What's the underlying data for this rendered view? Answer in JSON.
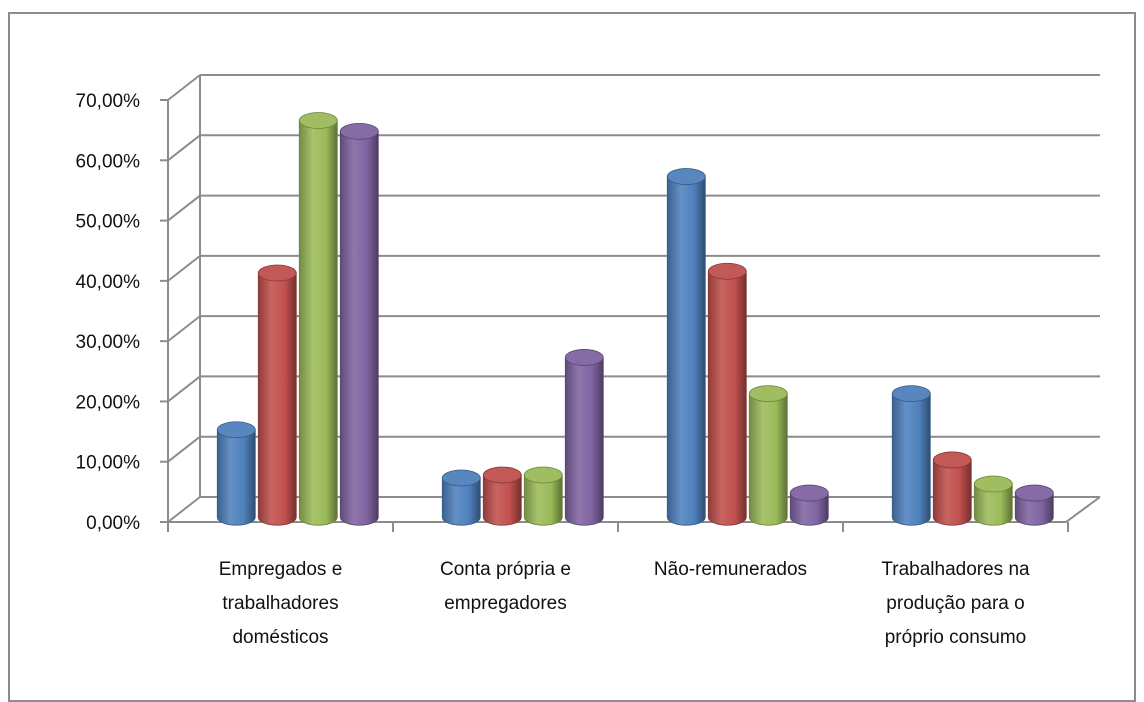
{
  "chart_data": {
    "type": "bar",
    "style": "3d-cylinder",
    "categories": [
      [
        "Empregados e",
        "trabalhadores",
        "domésticos"
      ],
      [
        "Conta própria e",
        "empregadores"
      ],
      [
        "Não-remunerados"
      ],
      [
        "Trabalhadores na",
        "produção para o",
        "próprio consumo"
      ]
    ],
    "series": [
      {
        "color": "#4f81bd",
        "values": [
          14.5,
          6.5,
          56.5,
          20.5
        ]
      },
      {
        "color": "#c0504d",
        "values": [
          40.5,
          7.0,
          40.8,
          9.5
        ]
      },
      {
        "color": "#9bbb59",
        "values": [
          65.8,
          7.0,
          20.5,
          5.5
        ]
      },
      {
        "color": "#8064a2",
        "values": [
          64.0,
          26.5,
          4.0,
          4.0
        ]
      }
    ],
    "ylim": [
      0,
      70
    ],
    "yticks": [
      "0,00%",
      "10,00%",
      "20,00%",
      "30,00%",
      "40,00%",
      "50,00%",
      "60,00%",
      "70,00%"
    ],
    "grid": true,
    "legend": "none"
  }
}
